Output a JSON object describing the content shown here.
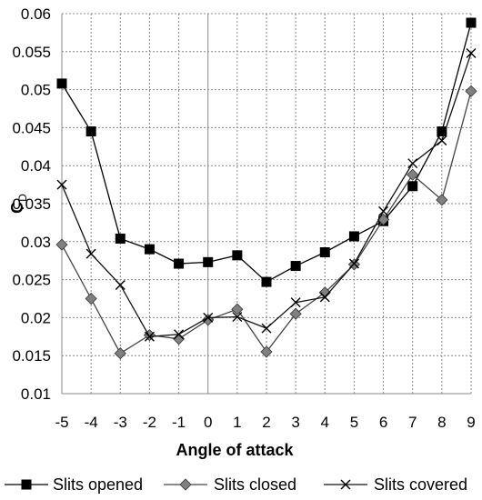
{
  "chart_data": {
    "type": "line",
    "xlabel": "Angle of attack",
    "ylabel": "C",
    "ylabel_subscript": "D",
    "x": [
      -5,
      -4,
      -3,
      -2,
      -1,
      0,
      1,
      2,
      3,
      4,
      5,
      6,
      7,
      8,
      9
    ],
    "xlim": [
      -5,
      9
    ],
    "ylim": [
      0.01,
      0.06
    ],
    "yticks": [
      "0.01",
      "0.015",
      "0.02",
      "0.025",
      "0.03",
      "0.035",
      "0.04",
      "0.045",
      "0.05",
      "0.055",
      "0.06"
    ],
    "xticks": [
      "-5",
      "-4",
      "-3",
      "-2",
      "-1",
      "0",
      "1",
      "2",
      "3",
      "4",
      "5",
      "6",
      "7",
      "8",
      "9"
    ],
    "grid": true,
    "legend_position": "bottom",
    "series": [
      {
        "name": "Slits opened",
        "marker": "square",
        "color": "#000000",
        "values": [
          0.0508,
          0.0445,
          0.0304,
          0.029,
          0.0271,
          0.0273,
          0.0282,
          0.0247,
          0.0268,
          0.0286,
          0.0307,
          0.0327,
          0.0373,
          0.0445,
          0.0588
        ]
      },
      {
        "name": "Slits closed",
        "marker": "diamond",
        "color": "#808080",
        "values": [
          0.0296,
          0.0225,
          0.0153,
          0.0177,
          0.0172,
          0.0197,
          0.0211,
          0.0155,
          0.0205,
          0.0233,
          0.027,
          0.0329,
          0.0388,
          0.0355,
          0.0498
        ]
      },
      {
        "name": "Slits covered",
        "marker": "x",
        "color": "#000000",
        "values": [
          0.0375,
          0.0284,
          0.0243,
          0.0175,
          0.0178,
          0.02,
          0.0201,
          0.0186,
          0.022,
          0.0227,
          0.0271,
          0.034,
          0.0403,
          0.0433,
          0.0548
        ]
      }
    ]
  }
}
